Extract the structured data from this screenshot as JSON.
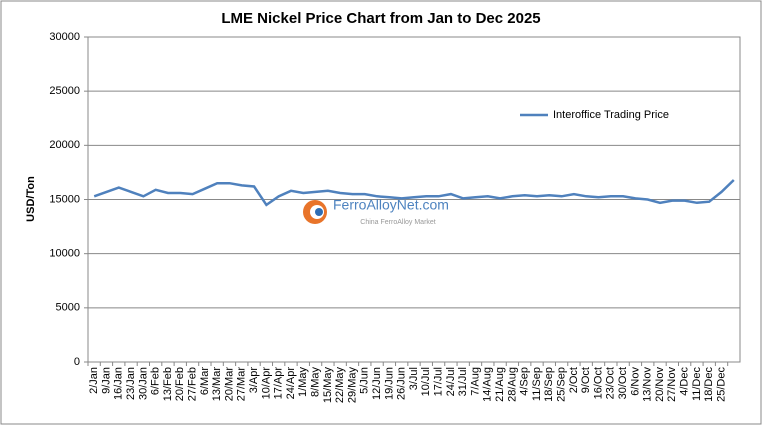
{
  "chart_data": {
    "type": "line",
    "title": "LME Nickel Price Chart from Jan to Dec 2025",
    "y_label": "USD/Ton",
    "watermark": "FerroAlloyNet.com",
    "watermark_sub": "China FerroAlloy Market",
    "categories": [
      "2/Jan",
      "9/Jan",
      "16/Jan",
      "23/Jan",
      "30/Jan",
      "6/Feb",
      "13/Feb",
      "20/Feb",
      "27/Feb",
      "6/Mar",
      "13/Mar",
      "20/Mar",
      "27/Mar",
      "3/Apr",
      "10/Apr",
      "17/Apr",
      "24/Apr",
      "1/May",
      "8/May",
      "15/May",
      "22/May",
      "29/May",
      "5/Jun",
      "12/Jun",
      "19/Jun",
      "26/Jun",
      "3/Jul",
      "10/Jul",
      "17/Jul",
      "24/Jul",
      "31/Jul",
      "7/Aug",
      "14/Aug",
      "21/Aug",
      "28/Aug",
      "4/Sep",
      "11/Sep",
      "18/Sep",
      "25/Sep",
      "2/Oct",
      "9/Oct",
      "16/Oct",
      "23/Oct",
      "30/Oct",
      "6/Nov",
      "13/Nov",
      "20/Nov",
      "27/Nov",
      "4/Dec",
      "11/Dec",
      "18/Dec",
      "25/Dec",
      null
    ],
    "series": [
      {
        "name": "Interoffice Trading Price",
        "color": "#4f81bd",
        "values": [
          15300,
          15700,
          16100,
          15700,
          15300,
          15900,
          15600,
          15600,
          15500,
          16000,
          16500,
          16500,
          16300,
          16200,
          14500,
          15300,
          15800,
          15600,
          15700,
          15800,
          15600,
          15500,
          15500,
          15300,
          15200,
          15100,
          15200,
          15300,
          15300,
          15500,
          15100,
          15200,
          15300,
          15100,
          15300,
          15400,
          15300,
          15400,
          15300,
          15500,
          15300,
          15200,
          15300,
          15300,
          15100,
          15000,
          14700,
          14900,
          14900,
          14700,
          14800,
          15700,
          16800
        ]
      }
    ],
    "ylim": [
      0,
      30000
    ],
    "yticks": [
      0,
      5000,
      10000,
      15000,
      20000,
      25000,
      30000
    ],
    "grid": true,
    "legend": "upper right"
  }
}
